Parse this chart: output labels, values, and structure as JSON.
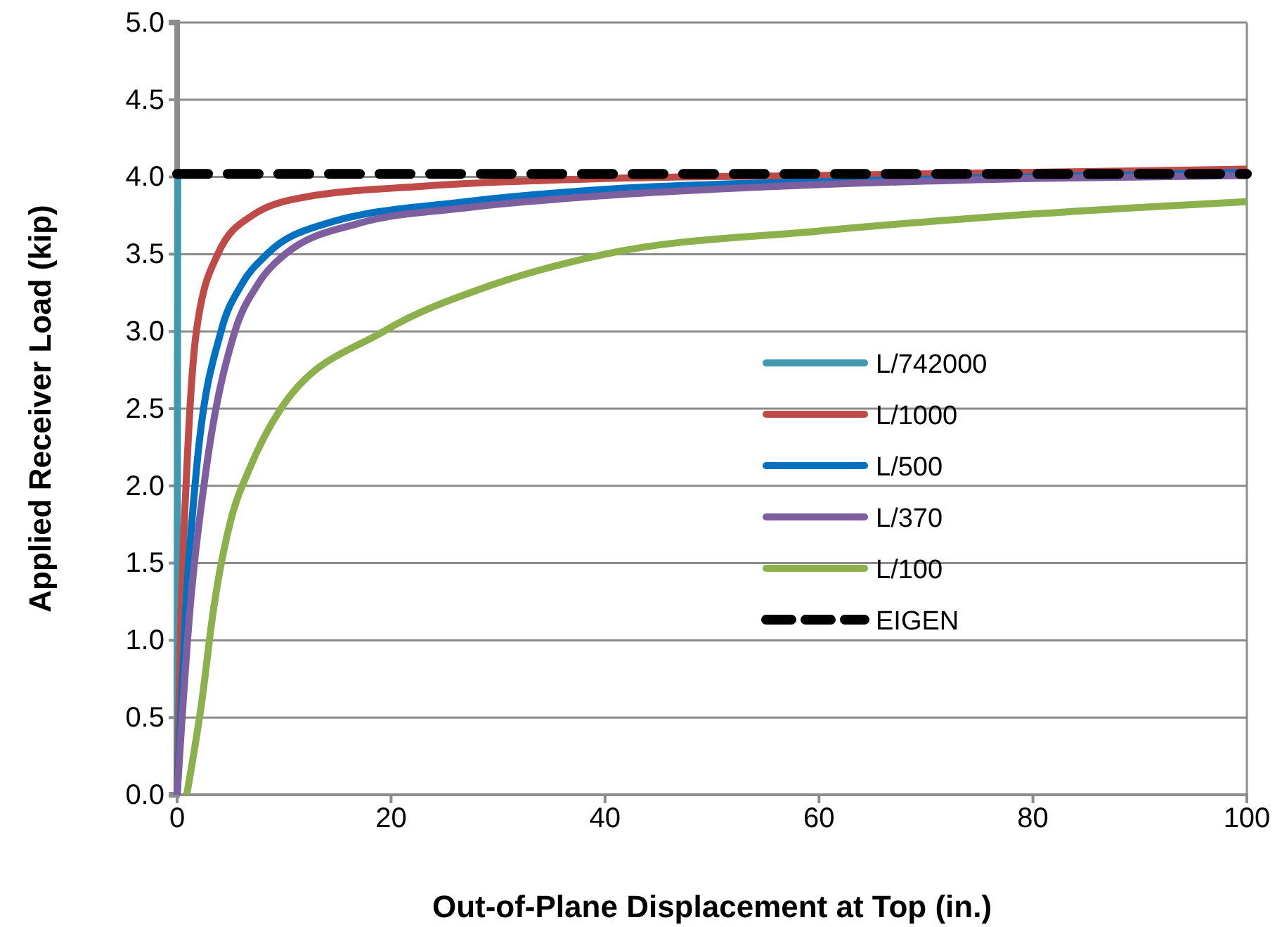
{
  "chart_data": {
    "type": "line",
    "xlabel": "Out-of-Plane Displacement at Top (in.)",
    "ylabel": "Applied Receiver Load (kip)",
    "xlim": [
      0,
      100
    ],
    "ylim": [
      0,
      5
    ],
    "xticks": [
      0,
      20,
      40,
      60,
      80,
      100
    ],
    "yticks": [
      {
        "value": 0,
        "label": "0.0"
      },
      {
        "value": 0.5,
        "label": "0.5"
      },
      {
        "value": 1,
        "label": "1.0"
      },
      {
        "value": 1.5,
        "label": "1.5"
      },
      {
        "value": 2,
        "label": "2.0"
      },
      {
        "value": 2.5,
        "label": "2.5"
      },
      {
        "value": 3,
        "label": "3.0"
      },
      {
        "value": 3.5,
        "label": "3.5"
      },
      {
        "value": 4,
        "label": "4.0"
      },
      {
        "value": 4.5,
        "label": "4.5"
      },
      {
        "value": 5,
        "label": "5.0"
      }
    ],
    "grid": "y",
    "legend": "right",
    "marker": "none",
    "series": [
      {
        "name": "L/742000",
        "color": "#4198af",
        "x": [
          0,
          0.05
        ],
        "values": [
          0,
          4.0
        ]
      },
      {
        "name": "L/1000",
        "color": "#be4b48",
        "x": [
          0,
          0.3,
          0.9,
          1.8,
          3.8,
          7,
          12,
          23,
          40,
          60,
          80,
          100
        ],
        "values": [
          0,
          1,
          2.1,
          3.0,
          3.5,
          3.75,
          3.87,
          3.94,
          3.99,
          4.01,
          4.03,
          4.05
        ]
      },
      {
        "name": "L/500",
        "color": "#0070c0",
        "x": [
          0,
          0.8,
          1.8,
          4.1,
          6,
          8.4,
          14,
          27,
          40,
          60,
          80,
          100
        ],
        "values": [
          0,
          1.2,
          2.1,
          3.0,
          3.3,
          3.5,
          3.7,
          3.84,
          3.92,
          3.97,
          4.0,
          4.03
        ]
      },
      {
        "name": "L/370",
        "color": "#7d5fa0",
        "x": [
          0,
          1.2,
          2.7,
          5.4,
          7.5,
          10.1,
          17,
          27,
          40,
          60,
          80,
          100
        ],
        "values": [
          0,
          1.2,
          2.1,
          3.0,
          3.3,
          3.5,
          3.7,
          3.8,
          3.88,
          3.95,
          3.99,
          4.01
        ]
      },
      {
        "name": "L/100",
        "color": "#8cb04c",
        "x": [
          0.9,
          2.3,
          3.4,
          5.1,
          6.7,
          9.7,
          19.3,
          29.4,
          40,
          60,
          80,
          100
        ],
        "values": [
          0,
          0.6,
          1.2,
          1.8,
          2.1,
          2.5,
          3.0,
          3.3,
          3.5,
          3.65,
          3.76,
          3.84
        ]
      },
      {
        "name": "EIGEN",
        "color": "#000000",
        "line_style": "dashed",
        "x": [
          0,
          100
        ],
        "values": [
          4.02,
          4.02
        ]
      }
    ]
  }
}
